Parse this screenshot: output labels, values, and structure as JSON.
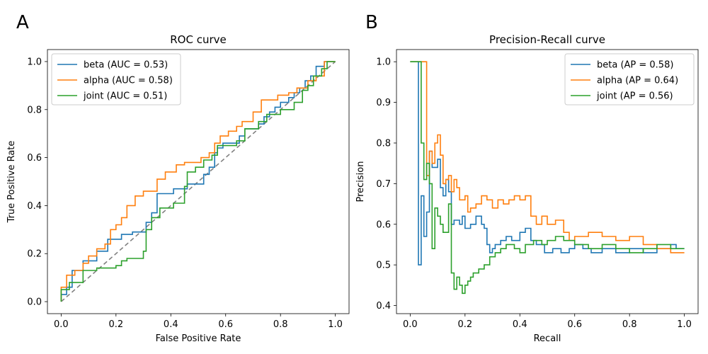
{
  "panels": [
    {
      "label": "A"
    },
    {
      "label": "B"
    }
  ],
  "chart_data": [
    {
      "type": "line",
      "title": "ROC curve",
      "xlabel": "False Positive Rate",
      "ylabel": "True Positive Rate",
      "xlim": [
        -0.05,
        1.05
      ],
      "ylim": [
        -0.05,
        1.05
      ],
      "xticks": [
        0.0,
        0.2,
        0.4,
        0.6,
        0.8,
        1.0
      ],
      "yticks": [
        0.0,
        0.2,
        0.4,
        0.6,
        0.8,
        1.0
      ],
      "xtick_labels": [
        "0.0",
        "0.2",
        "0.4",
        "0.6",
        "0.8",
        "1.0"
      ],
      "ytick_labels": [
        "0.0",
        "0.2",
        "0.4",
        "0.6",
        "0.8",
        "1.0"
      ],
      "grid": false,
      "legend_position": "upper-left",
      "diagonal": {
        "x": [
          0,
          1
        ],
        "y": [
          0,
          1
        ],
        "color": "#808080",
        "style": "dashed"
      },
      "series": [
        {
          "name": "beta (AUC = 0.53)",
          "color": "#1f77b4",
          "x": [
            0.0,
            0.0,
            0.02,
            0.02,
            0.04,
            0.04,
            0.08,
            0.08,
            0.13,
            0.13,
            0.17,
            0.17,
            0.22,
            0.22,
            0.26,
            0.26,
            0.31,
            0.31,
            0.33,
            0.33,
            0.35,
            0.35,
            0.41,
            0.41,
            0.46,
            0.46,
            0.52,
            0.52,
            0.54,
            0.54,
            0.56,
            0.56,
            0.57,
            0.57,
            0.59,
            0.59,
            0.65,
            0.65,
            0.67,
            0.67,
            0.72,
            0.72,
            0.74,
            0.74,
            0.76,
            0.76,
            0.78,
            0.78,
            0.8,
            0.8,
            0.83,
            0.83,
            0.85,
            0.85,
            0.87,
            0.87,
            0.89,
            0.89,
            0.91,
            0.91,
            0.93,
            0.93,
            0.96,
            0.96,
            1.0
          ],
          "y": [
            0.0,
            0.03,
            0.03,
            0.06,
            0.06,
            0.13,
            0.13,
            0.17,
            0.17,
            0.21,
            0.21,
            0.26,
            0.26,
            0.28,
            0.28,
            0.29,
            0.29,
            0.33,
            0.33,
            0.37,
            0.37,
            0.45,
            0.45,
            0.47,
            0.47,
            0.49,
            0.49,
            0.53,
            0.53,
            0.56,
            0.56,
            0.62,
            0.62,
            0.64,
            0.64,
            0.66,
            0.66,
            0.69,
            0.69,
            0.72,
            0.72,
            0.74,
            0.74,
            0.77,
            0.77,
            0.79,
            0.79,
            0.81,
            0.81,
            0.83,
            0.83,
            0.85,
            0.85,
            0.87,
            0.87,
            0.89,
            0.89,
            0.92,
            0.92,
            0.94,
            0.94,
            0.98,
            0.98,
            1.0,
            1.0
          ]
        },
        {
          "name": "alpha (AUC = 0.58)",
          "color": "#ff7f0e",
          "x": [
            0.0,
            0.0,
            0.02,
            0.02,
            0.05,
            0.05,
            0.08,
            0.08,
            0.1,
            0.1,
            0.13,
            0.13,
            0.16,
            0.16,
            0.18,
            0.18,
            0.2,
            0.2,
            0.22,
            0.22,
            0.24,
            0.24,
            0.27,
            0.27,
            0.3,
            0.3,
            0.35,
            0.35,
            0.38,
            0.38,
            0.42,
            0.42,
            0.45,
            0.45,
            0.51,
            0.51,
            0.54,
            0.54,
            0.56,
            0.56,
            0.58,
            0.58,
            0.61,
            0.61,
            0.64,
            0.64,
            0.66,
            0.66,
            0.7,
            0.7,
            0.73,
            0.73,
            0.79,
            0.79,
            0.83,
            0.83,
            0.86,
            0.86,
            0.9,
            0.9,
            0.93,
            0.93,
            0.96,
            0.96,
            1.0
          ],
          "y": [
            0.0,
            0.06,
            0.06,
            0.11,
            0.11,
            0.13,
            0.13,
            0.16,
            0.16,
            0.19,
            0.19,
            0.22,
            0.22,
            0.24,
            0.24,
            0.3,
            0.3,
            0.32,
            0.32,
            0.35,
            0.35,
            0.4,
            0.4,
            0.44,
            0.44,
            0.46,
            0.46,
            0.51,
            0.51,
            0.54,
            0.54,
            0.57,
            0.57,
            0.58,
            0.58,
            0.6,
            0.6,
            0.62,
            0.62,
            0.66,
            0.66,
            0.69,
            0.69,
            0.71,
            0.71,
            0.73,
            0.73,
            0.75,
            0.75,
            0.79,
            0.79,
            0.84,
            0.84,
            0.86,
            0.86,
            0.87,
            0.87,
            0.89,
            0.89,
            0.92,
            0.92,
            0.94,
            0.94,
            1.0,
            1.0
          ]
        },
        {
          "name": "joint (AUC = 0.51)",
          "color": "#2ca02c",
          "x": [
            0.0,
            0.0,
            0.03,
            0.03,
            0.08,
            0.08,
            0.13,
            0.13,
            0.2,
            0.2,
            0.22,
            0.22,
            0.24,
            0.24,
            0.3,
            0.3,
            0.31,
            0.31,
            0.33,
            0.33,
            0.36,
            0.36,
            0.41,
            0.41,
            0.45,
            0.45,
            0.46,
            0.46,
            0.49,
            0.49,
            0.52,
            0.52,
            0.55,
            0.55,
            0.57,
            0.57,
            0.64,
            0.64,
            0.67,
            0.67,
            0.72,
            0.72,
            0.75,
            0.75,
            0.8,
            0.8,
            0.85,
            0.85,
            0.88,
            0.88,
            0.9,
            0.9,
            0.92,
            0.92,
            0.95,
            0.95,
            0.97,
            0.97,
            1.0
          ],
          "y": [
            0.0,
            0.05,
            0.05,
            0.08,
            0.08,
            0.13,
            0.13,
            0.14,
            0.14,
            0.15,
            0.15,
            0.17,
            0.17,
            0.18,
            0.18,
            0.21,
            0.21,
            0.3,
            0.3,
            0.35,
            0.35,
            0.39,
            0.39,
            0.41,
            0.41,
            0.48,
            0.48,
            0.54,
            0.54,
            0.56,
            0.56,
            0.59,
            0.59,
            0.61,
            0.61,
            0.65,
            0.65,
            0.67,
            0.67,
            0.72,
            0.72,
            0.75,
            0.75,
            0.78,
            0.78,
            0.8,
            0.8,
            0.83,
            0.83,
            0.88,
            0.88,
            0.9,
            0.9,
            0.94,
            0.94,
            0.97,
            0.97,
            1.0,
            1.0
          ]
        }
      ]
    },
    {
      "type": "line",
      "title": "Precision-Recall curve",
      "xlabel": "Recall",
      "ylabel": "Precision",
      "xlim": [
        -0.05,
        1.05
      ],
      "ylim": [
        0.38,
        1.03
      ],
      "xticks": [
        0.0,
        0.2,
        0.4,
        0.6,
        0.8,
        1.0
      ],
      "yticks": [
        0.4,
        0.5,
        0.6,
        0.7,
        0.8,
        0.9,
        1.0
      ],
      "xtick_labels": [
        "0.0",
        "0.2",
        "0.4",
        "0.6",
        "0.8",
        "1.0"
      ],
      "ytick_labels": [
        "0.4",
        "0.5",
        "0.6",
        "0.7",
        "0.8",
        "0.9",
        "1.0"
      ],
      "grid": false,
      "legend_position": "upper-right",
      "series": [
        {
          "name": "beta (AP = 0.58)",
          "color": "#1f77b4",
          "x": [
            0.0,
            0.03,
            0.03,
            0.04,
            0.04,
            0.05,
            0.05,
            0.06,
            0.06,
            0.07,
            0.07,
            0.08,
            0.08,
            0.1,
            0.1,
            0.11,
            0.11,
            0.12,
            0.12,
            0.13,
            0.13,
            0.14,
            0.14,
            0.15,
            0.15,
            0.16,
            0.16,
            0.18,
            0.18,
            0.19,
            0.19,
            0.2,
            0.2,
            0.22,
            0.22,
            0.24,
            0.24,
            0.26,
            0.26,
            0.27,
            0.27,
            0.28,
            0.28,
            0.29,
            0.29,
            0.3,
            0.3,
            0.31,
            0.31,
            0.33,
            0.33,
            0.35,
            0.35,
            0.37,
            0.37,
            0.4,
            0.4,
            0.42,
            0.42,
            0.44,
            0.44,
            0.46,
            0.46,
            0.49,
            0.49,
            0.52,
            0.52,
            0.55,
            0.55,
            0.58,
            0.58,
            0.6,
            0.6,
            0.63,
            0.63,
            0.66,
            0.66,
            0.7,
            0.7,
            0.75,
            0.75,
            0.8,
            0.8,
            0.85,
            0.85,
            0.9,
            0.9,
            0.95,
            0.95,
            0.97,
            0.97,
            1.0
          ],
          "y": [
            1.0,
            1.0,
            0.5,
            0.5,
            0.67,
            0.67,
            0.57,
            0.57,
            0.63,
            0.63,
            0.78,
            0.78,
            0.74,
            0.74,
            0.76,
            0.76,
            0.69,
            0.69,
            0.67,
            0.67,
            0.71,
            0.71,
            0.68,
            0.68,
            0.6,
            0.6,
            0.61,
            0.61,
            0.6,
            0.6,
            0.62,
            0.62,
            0.59,
            0.59,
            0.6,
            0.6,
            0.62,
            0.62,
            0.6,
            0.6,
            0.59,
            0.59,
            0.55,
            0.55,
            0.53,
            0.53,
            0.54,
            0.54,
            0.55,
            0.55,
            0.56,
            0.56,
            0.57,
            0.57,
            0.56,
            0.56,
            0.58,
            0.58,
            0.59,
            0.59,
            0.56,
            0.56,
            0.55,
            0.55,
            0.53,
            0.53,
            0.54,
            0.54,
            0.53,
            0.53,
            0.54,
            0.54,
            0.55,
            0.55,
            0.54,
            0.54,
            0.53,
            0.53,
            0.54,
            0.54,
            0.53,
            0.53,
            0.54,
            0.54,
            0.53,
            0.53,
            0.54,
            0.54,
            0.55,
            0.55,
            0.54,
            0.54
          ]
        },
        {
          "name": "alpha (AP = 0.64)",
          "color": "#ff7f0e",
          "x": [
            0.0,
            0.06,
            0.06,
            0.07,
            0.07,
            0.08,
            0.08,
            0.09,
            0.09,
            0.1,
            0.1,
            0.11,
            0.11,
            0.12,
            0.12,
            0.13,
            0.13,
            0.14,
            0.14,
            0.15,
            0.15,
            0.16,
            0.16,
            0.17,
            0.17,
            0.18,
            0.18,
            0.2,
            0.2,
            0.21,
            0.21,
            0.22,
            0.22,
            0.24,
            0.24,
            0.26,
            0.26,
            0.28,
            0.28,
            0.3,
            0.3,
            0.32,
            0.32,
            0.34,
            0.34,
            0.36,
            0.36,
            0.38,
            0.38,
            0.4,
            0.4,
            0.42,
            0.42,
            0.44,
            0.44,
            0.46,
            0.46,
            0.48,
            0.48,
            0.5,
            0.5,
            0.53,
            0.53,
            0.56,
            0.56,
            0.58,
            0.58,
            0.6,
            0.6,
            0.65,
            0.65,
            0.7,
            0.7,
            0.75,
            0.75,
            0.8,
            0.8,
            0.85,
            0.85,
            0.9,
            0.9,
            0.95,
            0.95,
            1.0
          ],
          "y": [
            1.0,
            1.0,
            0.72,
            0.72,
            0.78,
            0.78,
            0.75,
            0.75,
            0.8,
            0.8,
            0.82,
            0.82,
            0.77,
            0.77,
            0.7,
            0.7,
            0.71,
            0.71,
            0.72,
            0.72,
            0.68,
            0.68,
            0.71,
            0.71,
            0.69,
            0.69,
            0.66,
            0.66,
            0.67,
            0.67,
            0.63,
            0.63,
            0.64,
            0.64,
            0.65,
            0.65,
            0.67,
            0.67,
            0.66,
            0.66,
            0.64,
            0.64,
            0.66,
            0.66,
            0.65,
            0.65,
            0.66,
            0.66,
            0.67,
            0.67,
            0.66,
            0.66,
            0.67,
            0.67,
            0.62,
            0.62,
            0.6,
            0.6,
            0.62,
            0.62,
            0.6,
            0.6,
            0.61,
            0.61,
            0.58,
            0.58,
            0.56,
            0.56,
            0.57,
            0.57,
            0.58,
            0.58,
            0.57,
            0.57,
            0.56,
            0.56,
            0.57,
            0.57,
            0.55,
            0.55,
            0.54,
            0.54,
            0.53,
            0.53
          ]
        },
        {
          "name": "joint (AP = 0.56)",
          "color": "#2ca02c",
          "x": [
            0.0,
            0.04,
            0.04,
            0.05,
            0.05,
            0.06,
            0.06,
            0.07,
            0.07,
            0.08,
            0.08,
            0.09,
            0.09,
            0.1,
            0.1,
            0.11,
            0.11,
            0.12,
            0.12,
            0.14,
            0.14,
            0.15,
            0.15,
            0.16,
            0.16,
            0.17,
            0.17,
            0.18,
            0.18,
            0.19,
            0.19,
            0.2,
            0.2,
            0.21,
            0.21,
            0.22,
            0.22,
            0.23,
            0.23,
            0.25,
            0.25,
            0.27,
            0.27,
            0.29,
            0.29,
            0.31,
            0.31,
            0.33,
            0.33,
            0.35,
            0.35,
            0.38,
            0.38,
            0.4,
            0.4,
            0.42,
            0.42,
            0.45,
            0.45,
            0.48,
            0.48,
            0.5,
            0.5,
            0.53,
            0.53,
            0.56,
            0.56,
            0.6,
            0.6,
            0.65,
            0.65,
            0.7,
            0.7,
            0.75,
            0.75,
            0.8,
            0.8,
            0.85,
            0.85,
            0.9,
            0.9,
            0.95,
            0.95,
            1.0
          ],
          "y": [
            1.0,
            1.0,
            0.8,
            0.8,
            0.71,
            0.71,
            0.75,
            0.75,
            0.7,
            0.7,
            0.54,
            0.54,
            0.64,
            0.64,
            0.62,
            0.62,
            0.6,
            0.6,
            0.58,
            0.58,
            0.65,
            0.65,
            0.48,
            0.48,
            0.44,
            0.44,
            0.47,
            0.47,
            0.45,
            0.45,
            0.43,
            0.43,
            0.45,
            0.45,
            0.46,
            0.46,
            0.47,
            0.47,
            0.48,
            0.48,
            0.49,
            0.49,
            0.5,
            0.5,
            0.52,
            0.52,
            0.53,
            0.53,
            0.54,
            0.54,
            0.55,
            0.55,
            0.54,
            0.54,
            0.53,
            0.53,
            0.55,
            0.55,
            0.56,
            0.56,
            0.55,
            0.55,
            0.56,
            0.56,
            0.57,
            0.57,
            0.56,
            0.56,
            0.55,
            0.55,
            0.54,
            0.54,
            0.55,
            0.55,
            0.54,
            0.54,
            0.53,
            0.53,
            0.54,
            0.54,
            0.55,
            0.55,
            0.54,
            0.54
          ]
        }
      ]
    }
  ]
}
